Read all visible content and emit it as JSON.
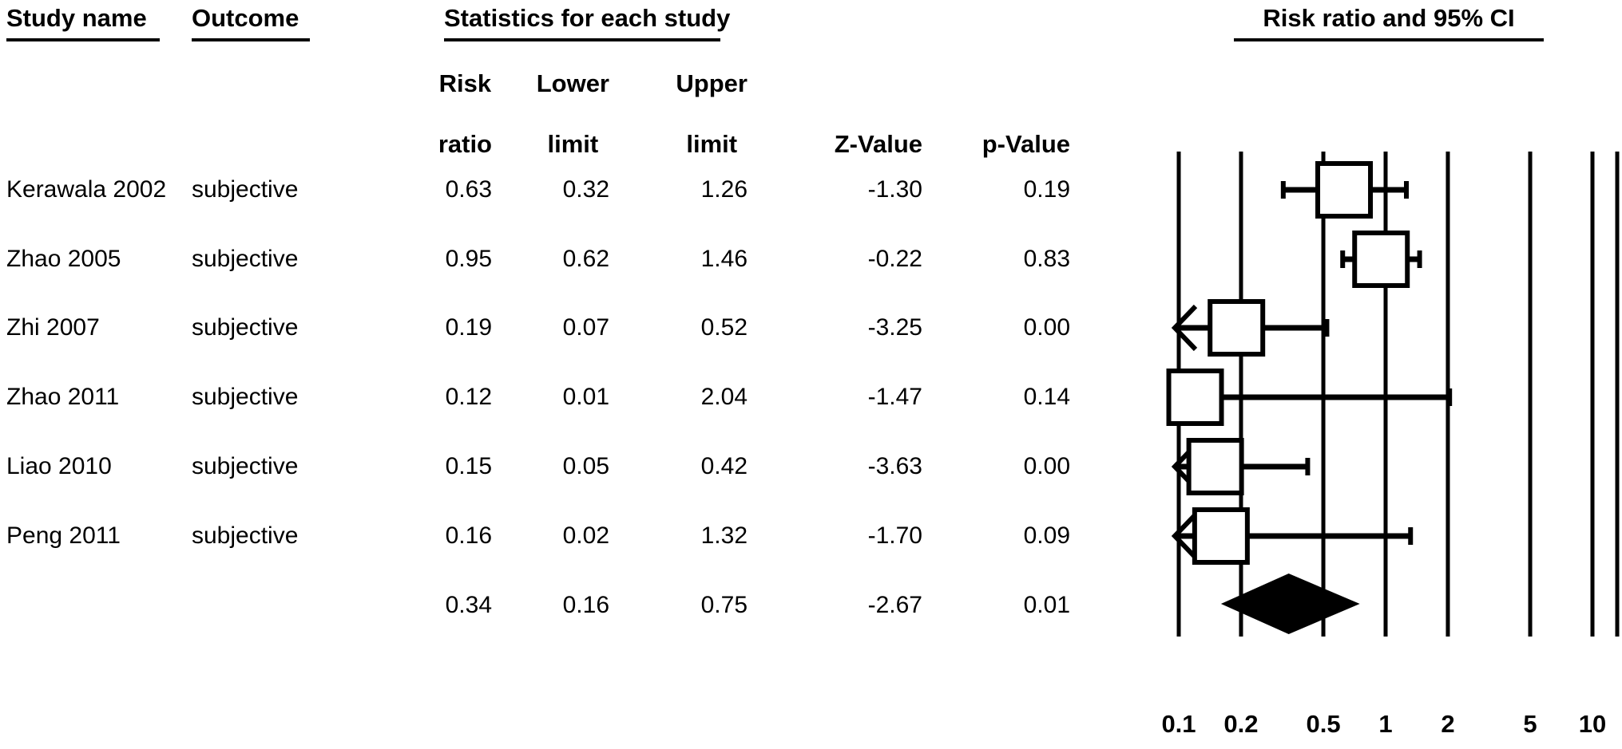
{
  "table": {
    "group_headers": {
      "study": "Study name",
      "outcome": "Outcome",
      "stats": "Statistics for each study",
      "plot": "Risk ratio and 95% CI"
    },
    "column_headers": [
      {
        "line1": "Risk",
        "line2": "ratio"
      },
      {
        "line1": "Lower",
        "line2": "limit"
      },
      {
        "line1": "Upper",
        "line2": "limit"
      },
      {
        "line1": "",
        "line2": "Z-Value"
      },
      {
        "line1": "",
        "line2": "p-Value"
      }
    ],
    "rows": [
      {
        "study": "Kerawala 2002",
        "outcome": "subjective",
        "rr": "0.63",
        "lower": "0.32",
        "upper": "1.26",
        "z": "-1.30",
        "p": "0.19"
      },
      {
        "study": "Zhao 2005",
        "outcome": "subjective",
        "rr": "0.95",
        "lower": "0.62",
        "upper": "1.46",
        "z": "-0.22",
        "p": "0.83"
      },
      {
        "study": "Zhi 2007",
        "outcome": "subjective",
        "rr": "0.19",
        "lower": "0.07",
        "upper": "0.52",
        "z": "-3.25",
        "p": "0.00"
      },
      {
        "study": "Zhao 2011",
        "outcome": "subjective",
        "rr": "0.12",
        "lower": "0.01",
        "upper": "2.04",
        "z": "-1.47",
        "p": "0.14"
      },
      {
        "study": "Liao 2010",
        "outcome": "subjective",
        "rr": "0.15",
        "lower": "0.05",
        "upper": "0.42",
        "z": "-3.63",
        "p": "0.00"
      },
      {
        "study": "Peng 2011",
        "outcome": "subjective",
        "rr": "0.16",
        "lower": "0.02",
        "upper": "1.32",
        "z": "-1.70",
        "p": "0.09"
      }
    ],
    "pooled": {
      "rr": "0.34",
      "lower": "0.16",
      "upper": "0.75",
      "z": "-2.67",
      "p": "0.01"
    }
  },
  "chart_data": {
    "type": "forest",
    "title": "Risk ratio and 95% CI",
    "x_scale": "log10",
    "x_axis": {
      "tick_values": [
        0.1,
        0.2,
        0.5,
        1,
        2,
        5,
        10
      ],
      "tick_labels": [
        "0.1",
        "0.2",
        "0.5",
        "1",
        "2",
        "5",
        "10"
      ],
      "min": 0.1,
      "max": 10,
      "clip_low": 0.1,
      "grid": true
    },
    "studies": [
      {
        "name": "Kerawala 2002",
        "rr": 0.63,
        "lower": 0.32,
        "upper": 1.26
      },
      {
        "name": "Zhao 2005",
        "rr": 0.95,
        "lower": 0.62,
        "upper": 1.46
      },
      {
        "name": "Zhi 2007",
        "rr": 0.19,
        "lower": 0.07,
        "upper": 0.52
      },
      {
        "name": "Zhao 2011",
        "rr": 0.12,
        "lower": 0.01,
        "upper": 2.04
      },
      {
        "name": "Liao 2010",
        "rr": 0.15,
        "lower": 0.05,
        "upper": 0.42
      },
      {
        "name": "Peng 2011",
        "rr": 0.16,
        "lower": 0.02,
        "upper": 1.32
      }
    ],
    "pooled": {
      "rr": 0.34,
      "lower": 0.16,
      "upper": 0.75
    },
    "markers": {
      "study": "open-square",
      "pooled": "filled-diamond",
      "clipped_ci": "left-chevron-arrow"
    },
    "colors": {
      "foreground": "#000000",
      "background": "#ffffff"
    }
  }
}
